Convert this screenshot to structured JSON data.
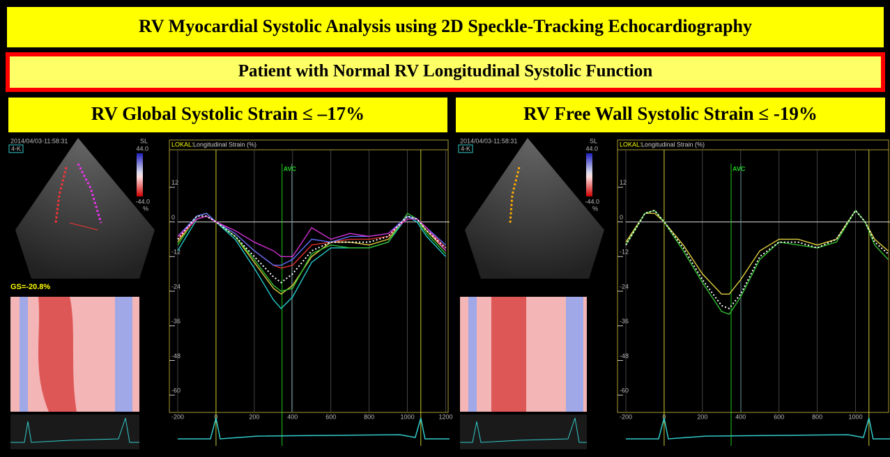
{
  "header": {
    "title": "RV Myocardial Systolic Analysis using 2D Speckle-Tracking Echocardiography",
    "subtitle": "Patient with Normal RV Longitudinal Systolic Function"
  },
  "chart_data": [
    {
      "type": "line",
      "title": "RV Global Systolic Strain ≤ –17%",
      "label_prefix": "LOKAL:",
      "ylabel": "Longitudinal Strain (%)",
      "annotation": "AVC",
      "timestamp": "2014/04/03-11:58:31",
      "view": "4-K",
      "scale_label": "SL",
      "scale_max": "44.0",
      "scale_min": "-44.0",
      "scale_unit": "%",
      "global_strain": "GS=-20.8%",
      "avc_x": 345,
      "frame_markers": [
        0,
        1070
      ],
      "x": [
        -200,
        -100,
        -50,
        0,
        100,
        200,
        300,
        340,
        400,
        500,
        600,
        700,
        800,
        900,
        1000,
        1050,
        1100,
        1200
      ],
      "series": [
        {
          "color": "#22cccc",
          "values": [
            -10,
            1,
            2,
            0,
            -6,
            -16,
            -27,
            -30,
            -26,
            -14,
            -9,
            -9,
            -9,
            -7,
            2,
            0,
            -5,
            -12
          ]
        },
        {
          "color": "#e0d040",
          "values": [
            -7,
            2,
            3,
            0,
            -5,
            -14,
            -23,
            -25,
            -22,
            -12,
            -7,
            -7,
            -8,
            -6,
            2,
            1,
            -3,
            -10
          ]
        },
        {
          "color": "#30c030",
          "values": [
            -8,
            2,
            3,
            0,
            -5,
            -13,
            -22,
            -24,
            -23,
            -11,
            -8,
            -9,
            -9,
            -7,
            3,
            1,
            -4,
            -11
          ]
        },
        {
          "color": "#e03030",
          "values": [
            -6,
            1,
            2,
            0,
            -4,
            -10,
            -15,
            -16,
            -15,
            -8,
            -7,
            -6,
            -6,
            -5,
            2,
            1,
            -2,
            -9
          ]
        },
        {
          "color": "#6070ff",
          "values": [
            -5,
            2,
            3,
            0,
            -4,
            -10,
            -15,
            -15,
            -13,
            -6,
            -7,
            -5,
            -5,
            -4,
            2,
            1,
            -2,
            -8
          ]
        },
        {
          "color": "#d030d0",
          "values": [
            -5,
            1,
            2,
            0,
            -3,
            -7,
            -10,
            -12,
            -12,
            -2,
            -6,
            -4,
            -5,
            -4,
            1,
            1,
            -2,
            -10
          ]
        },
        {
          "color": "#ffffff",
          "dash": true,
          "values": [
            -6,
            2,
            2,
            0,
            -5,
            -12,
            -19,
            -21,
            -18,
            -10,
            -7,
            -7,
            -7,
            -5,
            2,
            1,
            -3,
            -9
          ]
        }
      ],
      "xlim": [
        -200,
        1220
      ],
      "ylim": [
        -66,
        25
      ],
      "xticks": [
        -200,
        0,
        200,
        400,
        600,
        800,
        1000,
        1200
      ],
      "yticks": [
        12,
        0,
        -12,
        -24,
        -36,
        -48,
        -60
      ]
    },
    {
      "type": "line",
      "title": "RV Free Wall Systolic Strain ≤ -19%",
      "label_prefix": "LOKAL:",
      "ylabel": "Longitudinal Strain (%)",
      "annotation": "AVC",
      "timestamp": "2014/04/03-11:58:31",
      "view": "4-K",
      "scale_label": "SL",
      "scale_max": "44.0",
      "scale_min": "-44.0",
      "scale_unit": "%",
      "avc_x": 350,
      "frame_markers": [
        0,
        1070
      ],
      "x": [
        -200,
        -100,
        -50,
        0,
        100,
        200,
        300,
        340,
        400,
        500,
        600,
        700,
        800,
        900,
        1000,
        1050,
        1100,
        1170
      ],
      "series": [
        {
          "color": "#e0d040",
          "values": [
            -7,
            3,
            3,
            0,
            -8,
            -18,
            -25,
            -25,
            -20,
            -10,
            -6,
            -6,
            -8,
            -6,
            4,
            0,
            -6,
            -10
          ]
        },
        {
          "color": "#30c030",
          "values": [
            -8,
            3,
            4,
            0,
            -10,
            -21,
            -31,
            -32,
            -26,
            -13,
            -7,
            -8,
            -9,
            -7,
            4,
            0,
            -8,
            -13
          ]
        },
        {
          "color": "#ffffff",
          "dash": true,
          "values": [
            -8,
            3,
            4,
            0,
            -9,
            -20,
            -29,
            -30,
            -25,
            -12,
            -7,
            -7,
            -9,
            -6,
            4,
            0,
            -7,
            -11
          ]
        }
      ],
      "xlim": [
        -200,
        1180
      ],
      "ylim": [
        -66,
        25
      ],
      "xticks": [
        -200,
        0,
        200,
        400,
        600,
        800,
        1000
      ],
      "yticks": [
        12,
        0,
        -12,
        -24,
        -36,
        -48,
        -60
      ]
    }
  ]
}
